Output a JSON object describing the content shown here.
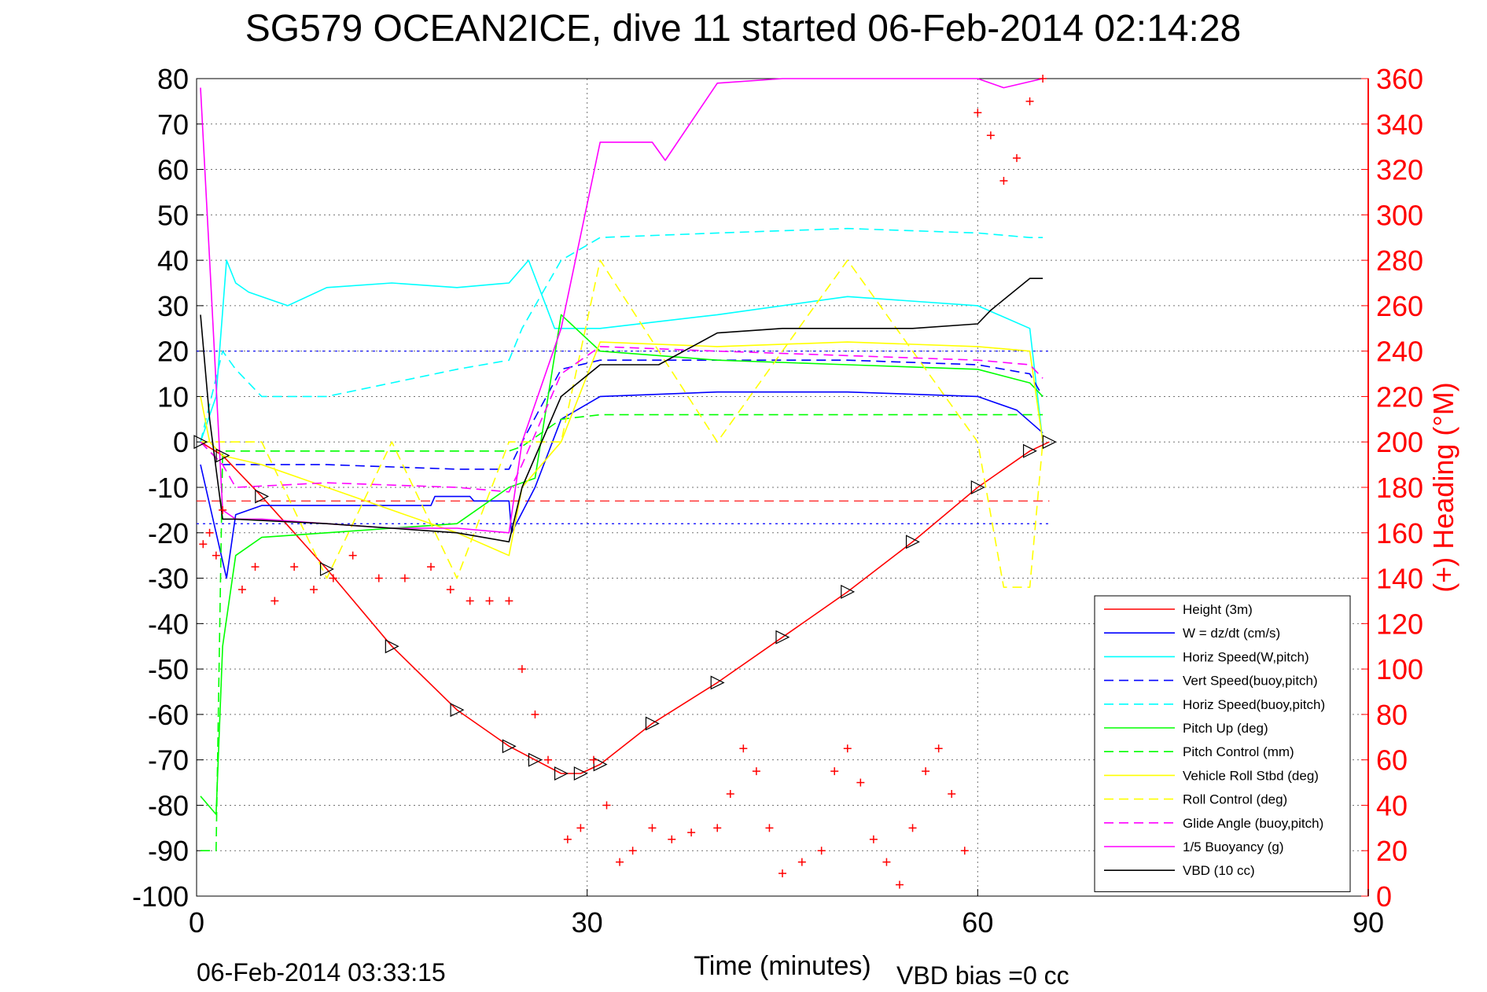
{
  "chart_data": {
    "type": "line",
    "title": "SG579 OCEAN2ICE, dive 11 started 06-Feb-2014 02:14:28",
    "xlabel": "Time (minutes)",
    "ylabel_right": "(+) Heading (°M)",
    "footer_left": "06-Feb-2014 03:33:15",
    "footer_right": "VBD bias =0 cc",
    "xlim": [
      0,
      90
    ],
    "ylim": [
      -100,
      80
    ],
    "y2lim": [
      0,
      360
    ],
    "xticks": [
      0,
      30,
      60,
      90
    ],
    "yticks": [
      -100,
      -90,
      -80,
      -70,
      -60,
      -50,
      -40,
      -30,
      -20,
      -10,
      0,
      10,
      20,
      30,
      40,
      50,
      60,
      70,
      80
    ],
    "y2ticks": [
      0,
      20,
      40,
      60,
      80,
      100,
      120,
      140,
      160,
      180,
      200,
      220,
      240,
      260,
      280,
      300,
      320,
      340,
      360
    ],
    "grid": true,
    "legend_position": "bottom-right",
    "series": [
      {
        "name": "Height (3m)",
        "color": "#ff0000",
        "style": "solid",
        "x": [
          0.3,
          2,
          5,
          10,
          15,
          20,
          24,
          26,
          28,
          29.5,
          31,
          35,
          40,
          45,
          50,
          55,
          60,
          64,
          65.5
        ],
        "y": [
          0,
          -3,
          -12,
          -28,
          -45,
          -59,
          -67,
          -70,
          -73,
          -73,
          -71,
          -62,
          -53,
          -43,
          -33,
          -22,
          -10,
          -2,
          0
        ]
      },
      {
        "name": "W = dz/dt (cm/s)",
        "color": "#0000ff",
        "style": "solid",
        "x": [
          0.3,
          1.5,
          2.3,
          3,
          5,
          10,
          15,
          18,
          18.3,
          21,
          21.3,
          24,
          24.2,
          26,
          28,
          31,
          40,
          50,
          60,
          63,
          65
        ],
        "y": [
          -5,
          -20,
          -30,
          -16,
          -14,
          -14,
          -14,
          -14,
          -12,
          -12,
          -13,
          -13,
          -20,
          -10,
          5,
          10,
          11,
          11,
          10,
          7,
          2
        ]
      },
      {
        "name": "Horiz Speed(W,pitch)",
        "color": "#00ffff",
        "style": "solid",
        "x": [
          0.3,
          1.5,
          2.3,
          3,
          4,
          7,
          10,
          15,
          20,
          24,
          25.5,
          27.5,
          29,
          31,
          40,
          50,
          60,
          64,
          65
        ],
        "y": [
          0,
          10,
          40,
          35,
          33,
          30,
          34,
          35,
          34,
          35,
          40,
          25,
          25,
          25,
          28,
          32,
          30,
          25,
          0
        ]
      },
      {
        "name": "Vert Speed(buoy,pitch)",
        "color": "#0000ff",
        "style": "dashed",
        "x": [
          0.3,
          2,
          3,
          10,
          20,
          24,
          25,
          28,
          31,
          40,
          50,
          60,
          64,
          65
        ],
        "y": [
          0,
          -5,
          -5,
          -5,
          -6,
          -6,
          0,
          16,
          18,
          18,
          18,
          17,
          15,
          10
        ]
      },
      {
        "name": "Horiz Speed(buoy,pitch)",
        "color": "#00ffff",
        "style": "dashed",
        "x": [
          0.3,
          2,
          3,
          5,
          10,
          15,
          20,
          24,
          25,
          28,
          31,
          40,
          50,
          60,
          64,
          65
        ],
        "y": [
          0,
          20,
          16,
          10,
          10,
          13,
          16,
          18,
          25,
          40,
          45,
          46,
          47,
          46,
          45,
          45
        ]
      },
      {
        "name": "Pitch Up (deg)",
        "color": "#00ff00",
        "style": "solid",
        "x": [
          0.3,
          1.5,
          2,
          3,
          5,
          10,
          15,
          20,
          24,
          26,
          27,
          28,
          31,
          40,
          50,
          60,
          64,
          65
        ],
        "y": [
          -78,
          -82,
          -45,
          -25,
          -21,
          -20,
          -19,
          -18,
          -10,
          -8,
          10,
          28,
          20,
          18,
          17,
          16,
          13,
          10
        ]
      },
      {
        "name": "Pitch Control (mm)",
        "color": "#00ff00",
        "style": "dashed",
        "x": [
          0.3,
          1.5,
          2,
          24,
          25,
          28,
          31,
          65
        ],
        "y": [
          -90,
          -90,
          -2,
          -2,
          -1,
          5,
          6,
          6
        ]
      },
      {
        "name": "Vehicle Roll Stbd (deg)",
        "color": "#ffff00",
        "style": "solid",
        "x": [
          0.3,
          1,
          2,
          5,
          10,
          15,
          20,
          24,
          25,
          28,
          31,
          40,
          50,
          60,
          64,
          65
        ],
        "y": [
          10,
          0,
          -3,
          -5,
          -10,
          -15,
          -20,
          -25,
          -10,
          0,
          22,
          21,
          22,
          21,
          20,
          0
        ]
      },
      {
        "name": "Roll Control (deg)",
        "color": "#ffff00",
        "style": "dashed",
        "x": [
          0.3,
          1,
          5,
          10,
          15,
          20,
          24,
          25,
          28,
          31,
          40,
          50,
          60,
          62,
          64,
          65
        ],
        "y": [
          0,
          0,
          0,
          -30,
          0,
          -30,
          0,
          0,
          0,
          40,
          0,
          40,
          0,
          -32,
          -32,
          0
        ]
      },
      {
        "name": "Glide Angle (buoy,pitch)",
        "color": "#ff00ff",
        "style": "dashed",
        "x": [
          0.3,
          2,
          3,
          10,
          20,
          24,
          25,
          28,
          31,
          40,
          50,
          60,
          64,
          65
        ],
        "y": [
          0,
          -5,
          -10,
          -9,
          -10,
          -11,
          -5,
          15,
          21,
          20,
          19,
          18,
          17,
          14
        ]
      },
      {
        "name": "1/5 Buoyancy (g)",
        "color": "#ff00ff",
        "style": "solid",
        "x": [
          0.3,
          1,
          2,
          3,
          5,
          10,
          15,
          20,
          24,
          25,
          28,
          31,
          35,
          36,
          40,
          45,
          50,
          55,
          60,
          62,
          65
        ],
        "y": [
          78,
          40,
          -15,
          -17,
          -17,
          -18,
          -19,
          -19,
          -20,
          0,
          25,
          66,
          66,
          62,
          79,
          80,
          80,
          80,
          80,
          78,
          80
        ]
      },
      {
        "name": "VBD (10 cc)",
        "color": "#000000",
        "style": "solid",
        "x": [
          0.3,
          1,
          2,
          3,
          10,
          20,
          24,
          25,
          28,
          31,
          35.5,
          40,
          45,
          50,
          55,
          60,
          61,
          64,
          65
        ],
        "y": [
          28,
          5,
          -17,
          -17,
          -18,
          -20,
          -22,
          -10,
          10,
          17,
          17,
          24,
          25,
          25,
          25,
          26,
          29,
          36,
          36
        ]
      }
    ],
    "reference_lines": [
      {
        "color": "#ff0000",
        "style": "dashed",
        "y": -13
      },
      {
        "color": "#0000ff",
        "style": "dotted",
        "y": 20
      },
      {
        "color": "#0000ff",
        "style": "dotted",
        "y": -18
      }
    ],
    "heading_scatter": {
      "color": "#ff0000",
      "marker": "+",
      "axis": "right",
      "x": [
        0.5,
        1,
        1.5,
        2,
        3.5,
        4.5,
        6,
        7.5,
        9,
        10.5,
        12,
        14,
        16,
        18,
        19.5,
        21,
        22.5,
        24,
        25,
        26,
        27,
        28.5,
        29.5,
        30.5,
        31.5,
        32.5,
        33.5,
        35,
        36.5,
        38,
        40,
        41,
        42,
        43,
        44,
        45,
        46.5,
        48,
        49,
        50,
        51,
        52,
        53,
        54,
        55,
        56,
        57,
        58,
        59,
        60,
        61,
        62,
        63,
        64,
        65
      ],
      "y": [
        155,
        160,
        150,
        170,
        135,
        145,
        130,
        145,
        135,
        140,
        150,
        140,
        140,
        145,
        135,
        130,
        130,
        130,
        100,
        80,
        60,
        25,
        30,
        60,
        40,
        15,
        20,
        30,
        25,
        28,
        30,
        45,
        65,
        55,
        30,
        10,
        15,
        20,
        55,
        65,
        50,
        25,
        15,
        5,
        30,
        55,
        65,
        45,
        20,
        345,
        335,
        315,
        325,
        350,
        360
      ]
    }
  }
}
